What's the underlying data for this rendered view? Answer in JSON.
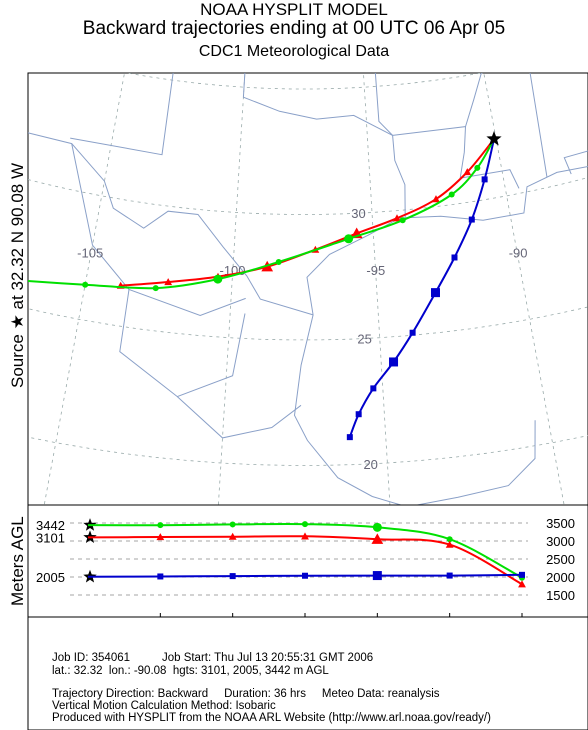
{
  "header": {
    "model": "NOAA HYSPLIT MODEL",
    "title": "Backward trajectories ending at 00 UTC 06 Apr 05",
    "subtitle": "CDC1 Meteorological Data"
  },
  "source_label": "Source ★ at   32.32 N   90.08 W",
  "vertical_axis_label": "Meters AGL",
  "chart_data": [
    {
      "type": "line",
      "name": "trajectory-map",
      "source": {
        "lat": 32.32,
        "lon": -90.08
      },
      "lon_labels": [
        "-105",
        "-100",
        "-95",
        "-90"
      ],
      "lat_labels": [
        "30",
        "25",
        "20"
      ],
      "series": [
        {
          "color": "#ff0000",
          "marker": "triangle",
          "height_m": 3101,
          "points": [
            [
              -90.08,
              32.32
            ],
            [
              -91.3,
              31.2
            ],
            [
              -92.6,
              30.3
            ],
            [
              -94.1,
              29.7
            ],
            [
              -95.6,
              29.2
            ],
            [
              -97.1,
              28.6
            ],
            [
              -98.8,
              27.9
            ],
            [
              -100.5,
              27.4
            ],
            [
              -102.2,
              27.0
            ],
            [
              -103.8,
              26.6
            ]
          ]
        },
        {
          "color": "#0000cc",
          "marker": "square",
          "height_m": 2005,
          "points": [
            [
              -90.08,
              32.32
            ],
            [
              -90.7,
              30.8
            ],
            [
              -91.4,
              29.3
            ],
            [
              -92.2,
              27.9
            ],
            [
              -93.0,
              26.6
            ],
            [
              -93.9,
              25.1
            ],
            [
              -94.6,
              24.0
            ],
            [
              -95.3,
              23.0
            ],
            [
              -95.8,
              22.0
            ],
            [
              -96.1,
              21.1
            ]
          ]
        },
        {
          "color": "#00e000",
          "marker": "circle",
          "height_m": 3442,
          "points": [
            [
              -90.08,
              32.32
            ],
            [
              -90.9,
              31.3
            ],
            [
              -92.0,
              30.4
            ],
            [
              -93.9,
              29.6
            ],
            [
              -95.9,
              29.0
            ],
            [
              -98.4,
              28.1
            ],
            [
              -100.5,
              27.3
            ],
            [
              -102.6,
              26.7
            ],
            [
              -105.0,
              26.4
            ],
            [
              -107.3,
              26.0
            ]
          ]
        }
      ]
    },
    {
      "type": "line",
      "name": "height-profile",
      "x_tick_labels": [
        "18",
        "12",
        "06",
        "00",
        "18",
        "12"
      ],
      "x_date_label": "04/05",
      "ylabel": "Meters AGL",
      "y_tick_labels": [
        "3500",
        "3000",
        "2500",
        "2000",
        "1500"
      ],
      "left_labels": [
        "3442",
        "3101",
        "2005"
      ],
      "series": [
        {
          "color": "#00e000",
          "marker": "circle",
          "hours_back": [
            0,
            6,
            12,
            18,
            24,
            30,
            36
          ],
          "height": [
            3442,
            3440,
            3460,
            3470,
            3380,
            3050,
            1980
          ]
        },
        {
          "color": "#ff0000",
          "marker": "triangle",
          "hours_back": [
            0,
            6,
            12,
            18,
            24,
            30,
            36
          ],
          "height": [
            3101,
            3110,
            3120,
            3130,
            3050,
            2900,
            1800
          ]
        },
        {
          "color": "#0000cc",
          "marker": "square",
          "hours_back": [
            0,
            6,
            12,
            18,
            24,
            30,
            36
          ],
          "height": [
            2005,
            2015,
            2025,
            2035,
            2040,
            2040,
            2060
          ]
        }
      ]
    }
  ],
  "footer": {
    "line1": "Job ID: 354061          Job Start: Thu Jul 13 20:55:31 GMT 2006",
    "line2": "lat.: 32.32  lon.: -90.08  hgts: 3101, 2005, 3442 m AGL",
    "line3": "Trajectory Direction: Backward     Duration: 36 hrs     Meteo Data: reanalysis",
    "line4": "Vertical Motion Calculation Method: Isobaric",
    "line5": "Produced with HYSPLIT from the NOAA ARL Website (http://www.arl.noaa.gov/ready/)"
  }
}
